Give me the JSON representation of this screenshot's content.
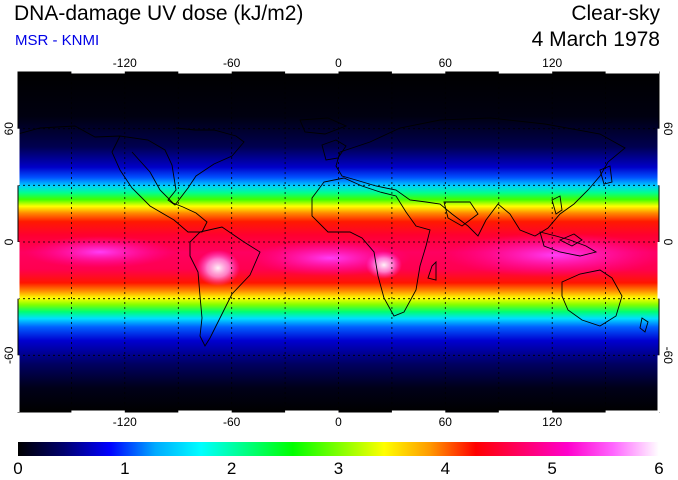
{
  "header": {
    "title": "DNA-damage UV dose (kJ/m2)",
    "source": "MSR - KNMI",
    "condition": "Clear-sky",
    "date": "4 March 1978"
  },
  "map": {
    "lon_ticks": [
      "-120",
      "-60",
      "0",
      "60",
      "120"
    ],
    "lat_ticks": [
      "60",
      "0",
      "-60"
    ],
    "lon_range": [
      -180,
      180
    ],
    "lat_range": [
      -90,
      90
    ],
    "graticule": "dashed, 30 degree spacing"
  },
  "colorbar": {
    "ticks": [
      "0",
      "1",
      "2",
      "3",
      "4",
      "5",
      "6"
    ],
    "min": 0,
    "max": 6,
    "colors": [
      "#000000",
      "#00006e",
      "#0000ff",
      "#00aaff",
      "#00ffff",
      "#00ff7f",
      "#00ff00",
      "#7fff00",
      "#ffff00",
      "#ff9900",
      "#ff0000",
      "#ff0066",
      "#ff00cc",
      "#ff66ff",
      "#ffffff"
    ]
  }
}
